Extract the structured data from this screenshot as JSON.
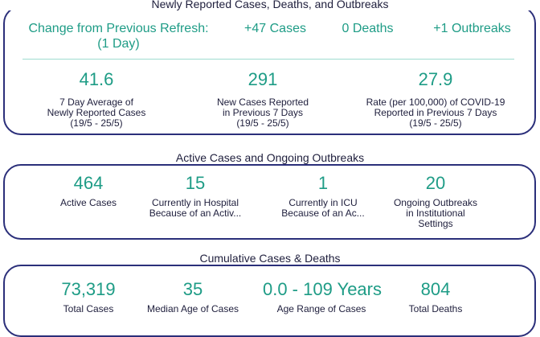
{
  "sections": {
    "newly_reported": {
      "title": "Newly Reported Cases, Deaths, and Outbreaks",
      "change_label": "Change from Previous Refresh:",
      "change_period": "(1 Day)",
      "cases_change": "+47 Cases",
      "deaths_change": "0 Deaths",
      "outbreaks_change": "+1 Outbreaks",
      "stats": [
        {
          "value": "41.6",
          "label_lines": [
            "7 Day Average of",
            "Newly Reported Cases",
            "(19/5 - 25/5)"
          ]
        },
        {
          "value": "291",
          "label_lines": [
            "New Cases Reported",
            "in Previous 7 Days",
            "(19/5 - 25/5)"
          ]
        },
        {
          "value": "27.9",
          "label_lines": [
            "Rate (per 100,000) of COVID-19",
            "Reported in Previous 7 Days",
            "(19/5 - 25/5)"
          ]
        }
      ]
    },
    "active": {
      "title": "Active Cases and Ongoing Outbreaks",
      "stats": [
        {
          "value": "464",
          "label_lines": [
            "Active Cases"
          ]
        },
        {
          "value": "15",
          "label_lines": [
            "Currently in Hospital",
            "Because of an Activ..."
          ]
        },
        {
          "value": "1",
          "label_lines": [
            "Currently in ICU",
            "Because of an Ac..."
          ]
        },
        {
          "value": "20",
          "label_lines": [
            "Ongoing Outbreaks",
            "in Institutional",
            "Settings"
          ]
        }
      ]
    },
    "cumulative": {
      "title": "Cumulative Cases & Deaths",
      "stats": [
        {
          "value": "73,319",
          "label_lines": [
            "Total Cases"
          ]
        },
        {
          "value": "35",
          "label_lines": [
            "Median Age of Cases"
          ]
        },
        {
          "value": "0.0 - 109 Years",
          "label_lines": [
            "Age Range of Cases"
          ]
        },
        {
          "value": "804",
          "label_lines": [
            "Total Deaths"
          ]
        }
      ]
    }
  },
  "colors": {
    "accent": "#1e9c86",
    "border": "#2b2f7a",
    "text": "#1e1e3c"
  }
}
